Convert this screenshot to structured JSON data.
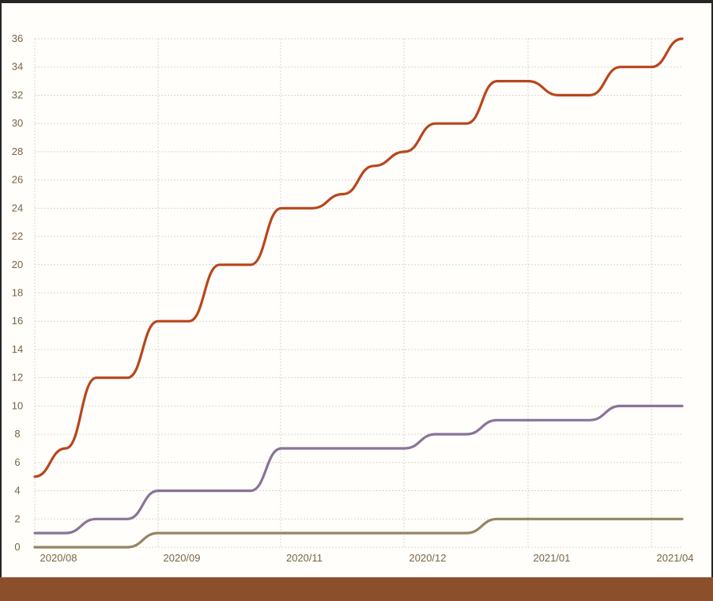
{
  "colors": {
    "background": "#fffefa",
    "frame": "#262626",
    "footer_bar": "#8c4f2b",
    "grid": "#d9d6cf",
    "tick_text": "#7a6346"
  },
  "chart_data": {
    "type": "line",
    "title": "",
    "xlabel": "",
    "ylabel": "",
    "x_tick_labels": [
      "2020/08",
      "2020/09",
      "2020/11",
      "2020/12",
      "2021/01",
      "2021/04"
    ],
    "y_ticks": [
      0,
      2,
      4,
      6,
      8,
      10,
      12,
      14,
      16,
      18,
      20,
      22,
      24,
      26,
      28,
      30,
      32,
      34,
      36
    ],
    "ylim": [
      0,
      36
    ],
    "grid": true,
    "legend": "none",
    "series": [
      {
        "color": "#b8461c",
        "points": [
          [
            0,
            5
          ],
          [
            5,
            7
          ],
          [
            10,
            12
          ],
          [
            15,
            12
          ],
          [
            20,
            16
          ],
          [
            25,
            16
          ],
          [
            30,
            20
          ],
          [
            35,
            20
          ],
          [
            40,
            24
          ],
          [
            45,
            24
          ],
          [
            50,
            25
          ],
          [
            55,
            27
          ],
          [
            60,
            28
          ],
          [
            65,
            30
          ],
          [
            70,
            30
          ],
          [
            75,
            33
          ],
          [
            80,
            33
          ],
          [
            85,
            32
          ],
          [
            90,
            32
          ],
          [
            95,
            34
          ],
          [
            100,
            34
          ],
          [
            105,
            36
          ]
        ]
      },
      {
        "color": "#8a7399",
        "points": [
          [
            0,
            1
          ],
          [
            5,
            1
          ],
          [
            10,
            2
          ],
          [
            15,
            2
          ],
          [
            20,
            4
          ],
          [
            25,
            4
          ],
          [
            30,
            4
          ],
          [
            35,
            4
          ],
          [
            40,
            7
          ],
          [
            45,
            7
          ],
          [
            50,
            7
          ],
          [
            55,
            7
          ],
          [
            60,
            7
          ],
          [
            65,
            8
          ],
          [
            70,
            8
          ],
          [
            75,
            9
          ],
          [
            80,
            9
          ],
          [
            85,
            9
          ],
          [
            90,
            9
          ],
          [
            95,
            10
          ],
          [
            100,
            10
          ],
          [
            105,
            10
          ]
        ]
      },
      {
        "color": "#958561",
        "points": [
          [
            0,
            0
          ],
          [
            5,
            0
          ],
          [
            10,
            0
          ],
          [
            15,
            0
          ],
          [
            20,
            1
          ],
          [
            25,
            1
          ],
          [
            30,
            1
          ],
          [
            35,
            1
          ],
          [
            40,
            1
          ],
          [
            45,
            1
          ],
          [
            50,
            1
          ],
          [
            55,
            1
          ],
          [
            60,
            1
          ],
          [
            65,
            1
          ],
          [
            70,
            1
          ],
          [
            75,
            2
          ],
          [
            80,
            2
          ],
          [
            85,
            2
          ],
          [
            90,
            2
          ],
          [
            95,
            2
          ],
          [
            100,
            2
          ],
          [
            105,
            2
          ]
        ]
      }
    ]
  }
}
